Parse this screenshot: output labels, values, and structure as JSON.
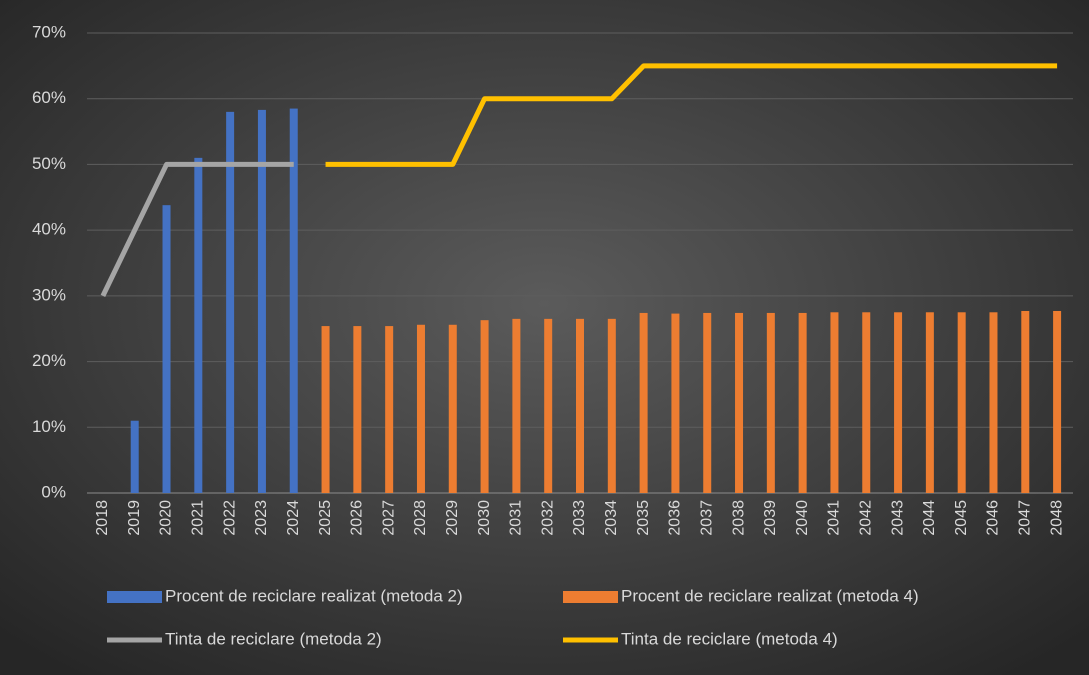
{
  "chart_data": {
    "type": "combo",
    "categories": [
      "2018",
      "2019",
      "2020",
      "2021",
      "2022",
      "2023",
      "2024",
      "2025",
      "2026",
      "2027",
      "2028",
      "2029",
      "2030",
      "2031",
      "2032",
      "2033",
      "2034",
      "2035",
      "2036",
      "2037",
      "2038",
      "2039",
      "2040",
      "2041",
      "2042",
      "2043",
      "2044",
      "2045",
      "2046",
      "2047",
      "2048"
    ],
    "series": [
      {
        "name": "Procent de reciclare realizat (metoda 2)",
        "type": "bar",
        "color": "#4472c4",
        "values": [
          null,
          11,
          43.8,
          51,
          58,
          58.3,
          58.5,
          null,
          null,
          null,
          null,
          null,
          null,
          null,
          null,
          null,
          null,
          null,
          null,
          null,
          null,
          null,
          null,
          null,
          null,
          null,
          null,
          null,
          null,
          null,
          null
        ]
      },
      {
        "name": "Procent de reciclare realizat (metoda 4)",
        "type": "bar",
        "color": "#ed7d31",
        "values": [
          null,
          null,
          null,
          null,
          null,
          null,
          null,
          25.4,
          25.4,
          25.4,
          25.6,
          25.6,
          26.3,
          26.5,
          26.5,
          26.5,
          26.5,
          27.4,
          27.3,
          27.4,
          27.4,
          27.4,
          27.4,
          27.5,
          27.5,
          27.5,
          27.5,
          27.5,
          27.5,
          27.7,
          27.7
        ]
      },
      {
        "name": "Tinta de reciclare (metoda 2)",
        "type": "line",
        "color": "#a5a5a5",
        "values": [
          30,
          40,
          50,
          50,
          50,
          50,
          50,
          null,
          null,
          null,
          null,
          null,
          null,
          null,
          null,
          null,
          null,
          null,
          null,
          null,
          null,
          null,
          null,
          null,
          null,
          null,
          null,
          null,
          null,
          null,
          null
        ]
      },
      {
        "name": "Tinta de reciclare (metoda 4)",
        "type": "line",
        "color": "#ffc000",
        "values": [
          null,
          null,
          null,
          null,
          null,
          null,
          null,
          50,
          50,
          50,
          50,
          50,
          60,
          60,
          60,
          60,
          60,
          65,
          65,
          65,
          65,
          65,
          65,
          65,
          65,
          65,
          65,
          65,
          65,
          65,
          65
        ]
      }
    ],
    "ylim": [
      0,
      70
    ],
    "yticks": [
      {
        "value": 0,
        "label": "0%"
      },
      {
        "value": 10,
        "label": "10%"
      },
      {
        "value": 20,
        "label": "20%"
      },
      {
        "value": 30,
        "label": "30%"
      },
      {
        "value": 40,
        "label": "40%"
      },
      {
        "value": 50,
        "label": "50%"
      },
      {
        "value": 60,
        "label": "60%"
      },
      {
        "value": 70,
        "label": "70%"
      }
    ],
    "grid": true
  }
}
